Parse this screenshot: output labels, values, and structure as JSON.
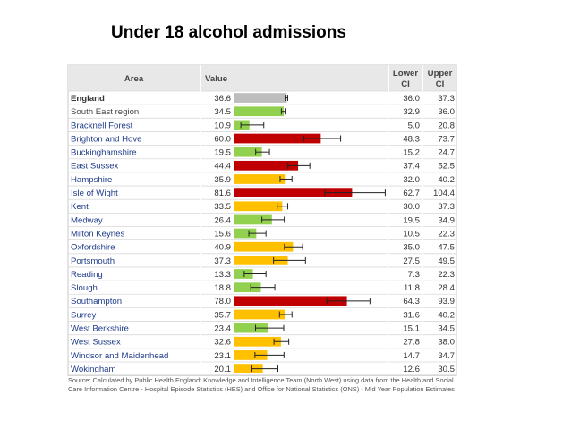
{
  "slide": {
    "title": "Under 18 alcohol admissions"
  },
  "table": {
    "headers": {
      "area": "Area",
      "value": "Value",
      "lower": [
        "Lower",
        "CI"
      ],
      "upper": [
        "Upper",
        "CI"
      ]
    },
    "source": "Source: Calculated by Public Health England: Knowledge and Intelligence Team (North West) using data from the Health and Social Care Information Centre - Hospital Episode Statistics (HES) and Office for National Statistics (ONS) - Mid Year Population Estimates"
  },
  "colors": {
    "benchmark": "#bdbdbd",
    "similar": "#ffc000",
    "worse": "#c00000",
    "better": "#92d050",
    "area_link": "#1f3c88",
    "header_bg": "#e8e8e8"
  },
  "chart_data": {
    "type": "bar",
    "orientation": "horizontal",
    "title": "Under 18 alcohol admissions",
    "categories": [
      "England",
      "South East region",
      "Bracknell Forest",
      "Brighton and Hove",
      "Buckinghamshire",
      "East Sussex",
      "Hampshire",
      "Isle of Wight",
      "Kent",
      "Medway",
      "Milton Keynes",
      "Oxfordshire",
      "Portsmouth",
      "Reading",
      "Slough",
      "Southampton",
      "Surrey",
      "West Berkshire",
      "West Sussex",
      "Windsor and Maidenhead",
      "Wokingham"
    ],
    "values": [
      36.6,
      34.5,
      10.9,
      60.0,
      19.5,
      44.4,
      35.9,
      81.6,
      33.5,
      26.4,
      15.6,
      40.9,
      37.3,
      13.3,
      18.8,
      78.0,
      35.7,
      23.4,
      32.6,
      23.1,
      20.1
    ],
    "lower_ci": [
      36.0,
      32.9,
      5.0,
      48.3,
      15.2,
      37.4,
      32.0,
      62.7,
      30.0,
      19.5,
      10.5,
      35.0,
      27.5,
      7.3,
      11.8,
      64.3,
      31.6,
      15.1,
      27.8,
      14.7,
      12.6
    ],
    "upper_ci": [
      37.3,
      36.0,
      20.8,
      73.7,
      24.7,
      52.5,
      40.2,
      104.4,
      37.3,
      34.9,
      22.3,
      47.5,
      49.5,
      22.3,
      28.4,
      93.9,
      40.2,
      34.5,
      38.0,
      34.7,
      30.5
    ],
    "value_labels": [
      "36.6",
      "34.5",
      "10.9",
      "60.0",
      "19.5",
      "44.4",
      "35.9",
      "81.6",
      "33.5",
      "26.4",
      "15.6",
      "40.9",
      "37.3",
      "13.3",
      "18.8",
      "78.0",
      "35.7",
      "23.4",
      "32.6",
      "23.1",
      "20.1"
    ],
    "lower_labels": [
      "36.0",
      "32.9",
      "5.0",
      "48.3",
      "15.2",
      "37.4",
      "32.0",
      "62.7",
      "30.0",
      "19.5",
      "10.5",
      "35.0",
      "27.5",
      "7.3",
      "11.8",
      "64.3",
      "31.6",
      "15.1",
      "27.8",
      "14.7",
      "12.6"
    ],
    "upper_labels": [
      "37.3",
      "36.0",
      "20.8",
      "73.7",
      "24.7",
      "52.5",
      "40.2",
      "104.4",
      "37.3",
      "34.9",
      "22.3",
      "47.5",
      "49.5",
      "22.3",
      "28.4",
      "93.9",
      "40.2",
      "34.5",
      "38.0",
      "34.7",
      "30.5"
    ],
    "categories_color": [
      "benchmark",
      "better",
      "better",
      "worse",
      "better",
      "worse",
      "similar",
      "worse",
      "similar",
      "better",
      "better",
      "similar",
      "similar",
      "better",
      "better",
      "worse",
      "similar",
      "better",
      "similar",
      "similar",
      "similar"
    ],
    "xlim": [
      0,
      106
    ],
    "grid": false
  }
}
